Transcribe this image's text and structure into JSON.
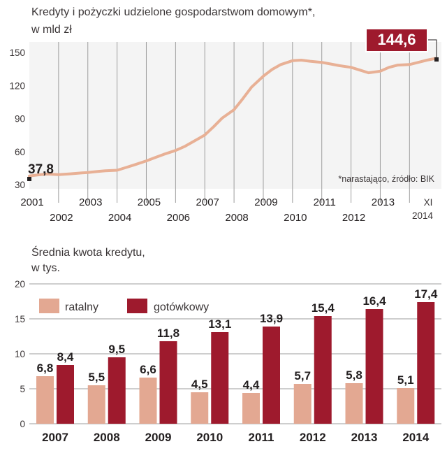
{
  "chart_data": [
    {
      "type": "line",
      "title": "Kredyty i pożyczki udzielone gospodarstwom domowym*,",
      "subtitle": "w  mld zł",
      "note": "*narastająco, źródło: BIK",
      "color": "#e8b095",
      "ylim": [
        30,
        150
      ],
      "yticks": [
        "30",
        "60",
        "90",
        "120",
        "150"
      ],
      "xlim": [
        2001,
        2014.9
      ],
      "xticks_top": [
        "2001",
        "2003",
        "2005",
        "2007",
        "2009",
        "2011",
        "2013"
      ],
      "xticks_bottom": [
        "2002",
        "2004",
        "2006",
        "2008",
        "2010",
        "2012"
      ],
      "x_last_label": [
        "XI",
        "2014"
      ],
      "start_label": "37,8",
      "end_label": "144,6",
      "grid": "vertical",
      "series": [
        {
          "x": [
            2001.0,
            2001.3,
            2001.6,
            2002.0,
            2002.4,
            2002.8,
            2003.0,
            2003.3,
            2003.6,
            2004.0,
            2004.3,
            2004.6,
            2005.0,
            2005.3,
            2005.6,
            2006.0,
            2006.3,
            2006.6,
            2007.0,
            2007.3,
            2007.6,
            2008.0,
            2008.3,
            2008.6,
            2009.0,
            2009.3,
            2009.6,
            2010.0,
            2010.3,
            2010.6,
            2011.0,
            2011.3,
            2011.6,
            2012.0,
            2012.3,
            2012.6,
            2013.0,
            2013.3,
            2013.6,
            2014.0,
            2014.3,
            2014.6,
            2014.9
          ],
          "y": [
            37.8,
            38.8,
            39.6,
            39.0,
            39.8,
            40.6,
            41.0,
            41.8,
            42.5,
            43.0,
            45.5,
            48.0,
            51.5,
            54.5,
            57.5,
            61.0,
            64.5,
            69.0,
            75.0,
            82.5,
            90.5,
            98.0,
            108.0,
            118.5,
            128.5,
            134.5,
            139.0,
            142.5,
            143.0,
            142.0,
            141.0,
            139.5,
            138.0,
            136.5,
            134.0,
            131.5,
            133.0,
            136.5,
            138.5,
            139.0,
            141.0,
            143.0,
            144.6
          ]
        }
      ]
    },
    {
      "type": "bar",
      "title": "Średnia kwota kredytu,",
      "subtitle": "w tys.",
      "ylim": [
        0,
        20
      ],
      "yticks": [
        "0",
        "5",
        "10",
        "15",
        "20"
      ],
      "grid": "horizontal",
      "categories": [
        "2007",
        "2008",
        "2009",
        "2010",
        "2011",
        "2012",
        "2013",
        "2014"
      ],
      "series": [
        {
          "name": "ratalny",
          "color": "#e3a892",
          "values": [
            6.8,
            5.5,
            6.6,
            4.5,
            4.4,
            5.7,
            5.8,
            5.1
          ],
          "labels": [
            "6,8",
            "5,5",
            "6,6",
            "4,5",
            "4,4",
            "5,7",
            "5,8",
            "5,1"
          ]
        },
        {
          "name": "gotówkowy",
          "color": "#9e1a2d",
          "values": [
            8.4,
            9.5,
            11.8,
            13.1,
            13.9,
            15.4,
            16.4,
            17.4
          ],
          "labels": [
            "8,4",
            "9,5",
            "11,8",
            "13,1",
            "13,9",
            "15,4",
            "16,4",
            "17,4"
          ]
        }
      ]
    }
  ]
}
